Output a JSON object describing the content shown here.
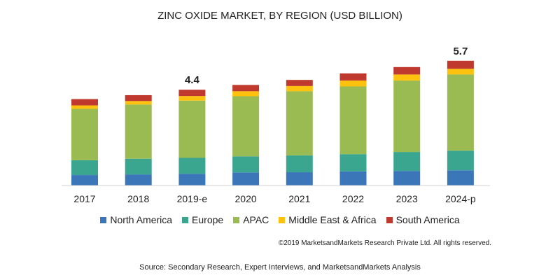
{
  "chart_data": {
    "type": "bar",
    "stacked": true,
    "title": "ZINC OXIDE MARKET, BY REGION (USD BILLION)",
    "xlabel": "",
    "ylabel": "",
    "ylim": [
      0,
      6
    ],
    "grid": false,
    "legend_position": "bottom",
    "categories": [
      "2017",
      "2018",
      "2019-e",
      "2020",
      "2021",
      "2022",
      "2023",
      "2024-p"
    ],
    "series": [
      {
        "name": "North America",
        "color": "#3b77b8",
        "values": [
          0.48,
          0.51,
          0.54,
          0.6,
          0.61,
          0.65,
          0.67,
          0.7
        ]
      },
      {
        "name": "Europe",
        "color": "#3aa68f",
        "values": [
          0.68,
          0.72,
          0.73,
          0.74,
          0.77,
          0.79,
          0.87,
          0.9
        ]
      },
      {
        "name": "APAC",
        "color": "#9aba52",
        "values": [
          2.36,
          2.49,
          2.63,
          2.76,
          2.95,
          3.11,
          3.28,
          3.5
        ]
      },
      {
        "name": "Middle East & Africa",
        "color": "#fcc20d",
        "values": [
          0.16,
          0.16,
          0.21,
          0.23,
          0.24,
          0.27,
          0.28,
          0.26
        ]
      },
      {
        "name": "South America",
        "color": "#c0392f",
        "values": [
          0.29,
          0.27,
          0.29,
          0.29,
          0.28,
          0.33,
          0.34,
          0.37
        ]
      }
    ],
    "annotations": [
      {
        "category": "2019-e",
        "text": "4.4"
      },
      {
        "category": "2024-p",
        "text": "5.7"
      }
    ]
  },
  "footer": {
    "copyright": "©2019 MarketsandMarkets Research Private Ltd. All rights reserved.",
    "source": "Source: Secondary Research, Expert Interviews, and MarketsandMarkets Analysis"
  }
}
